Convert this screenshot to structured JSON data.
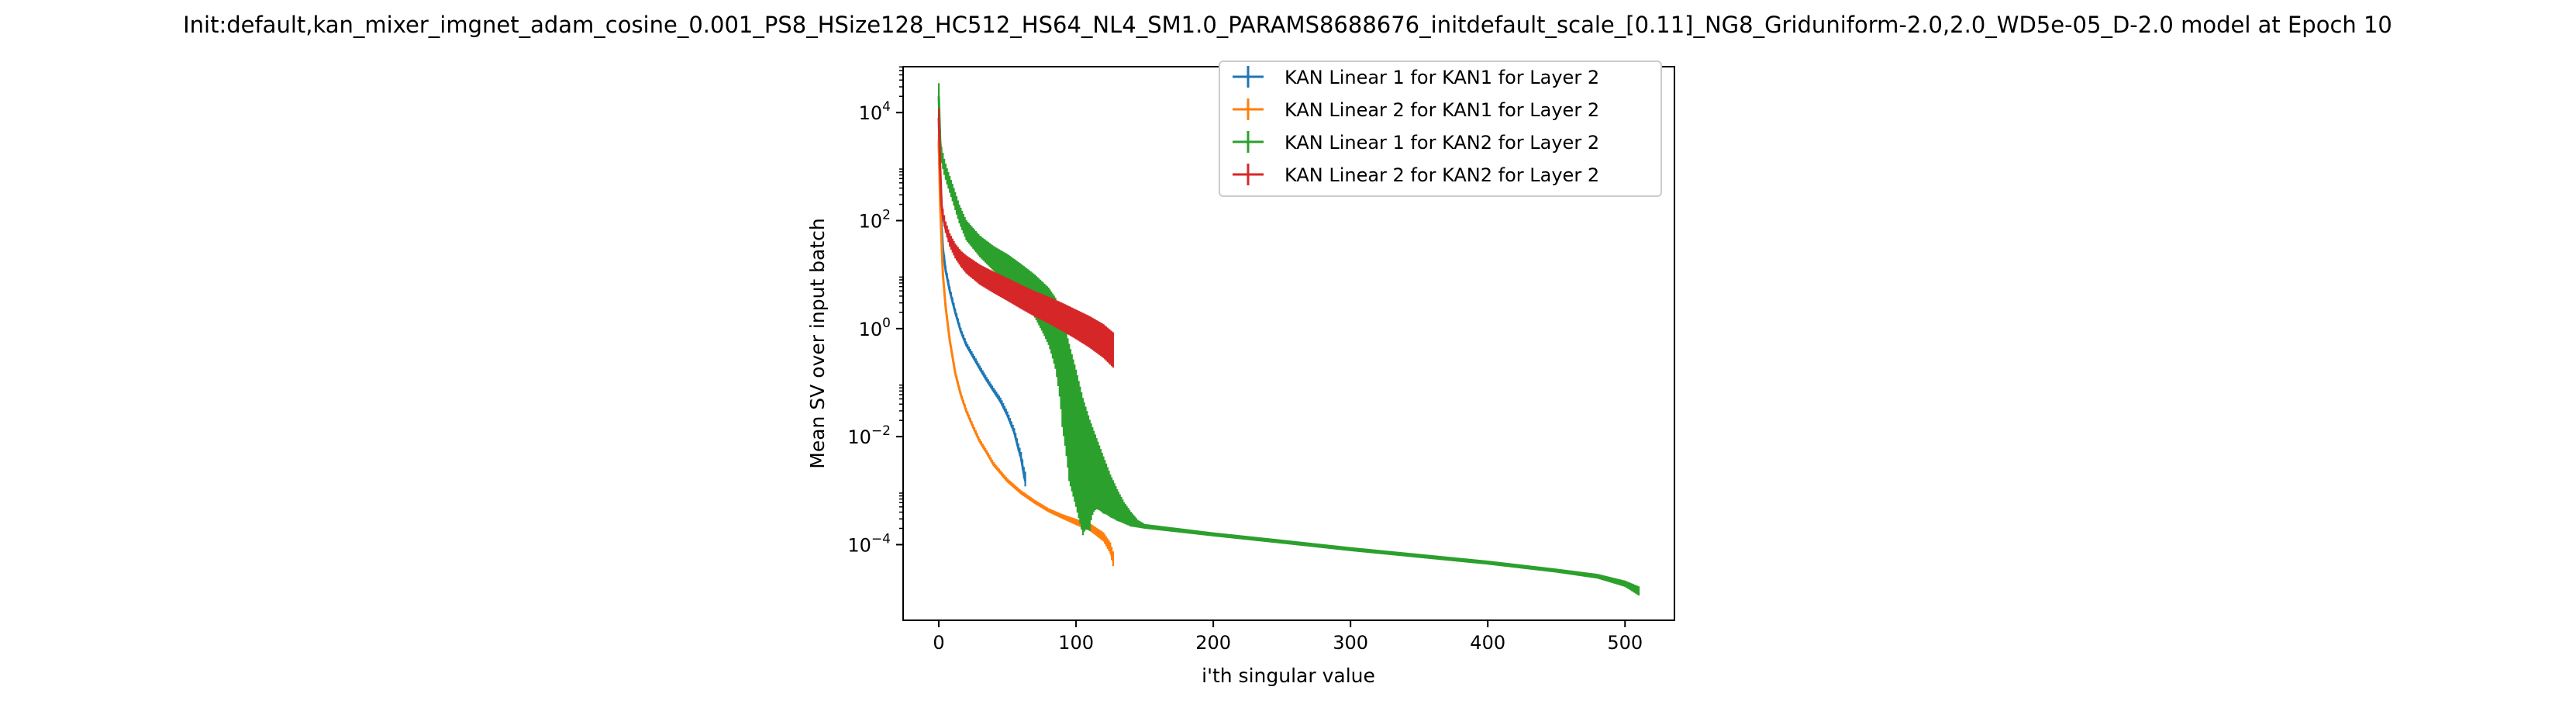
{
  "chart_data": {
    "type": "line",
    "title": "Init:default,kan_mixer_imgnet_adam_cosine_0.001_PS8_HSize128_HC512_HS64_NL4_SM1.0_PARAMS8688676_initdefault_scale_[0.11]_NG8_Griduniform-2.0,2.0_WD5e-05_D-2.0 model at Epoch 10",
    "xlabel": "i'th singular value",
    "ylabel": "Mean SV over input batch",
    "xlim": [
      -26,
      536
    ],
    "ylim_log10": [
      -5.4,
      4.85
    ],
    "y_scale": "log",
    "x_ticks": [
      "0",
      "100",
      "200",
      "300",
      "400",
      "500"
    ],
    "y_ticks": [
      {
        "base": "10",
        "exp": "4"
      },
      {
        "base": "10",
        "exp": "2"
      },
      {
        "base": "10",
        "exp": "0"
      },
      {
        "base": "10",
        "exp": "−2"
      },
      {
        "base": "10",
        "exp": "−4"
      }
    ],
    "legend_position": "top-right",
    "grid": false,
    "series": [
      {
        "name": "KAN Linear 1 for KAN1 for Layer 2",
        "color": "#1f77b4",
        "x": [
          0,
          1,
          2,
          3,
          5,
          8,
          12,
          16,
          20,
          25,
          30,
          35,
          40,
          45,
          50,
          55,
          58,
          60,
          62,
          63
        ],
        "y": [
          3000,
          300,
          80,
          30,
          12,
          5,
          2,
          0.9,
          0.5,
          0.3,
          0.18,
          0.11,
          0.07,
          0.045,
          0.025,
          0.012,
          0.006,
          0.004,
          0.002,
          0.0015
        ],
        "err_rel": [
          0.15,
          0.12,
          0.1,
          0.1,
          0.08,
          0.08,
          0.07,
          0.06,
          0.06,
          0.06,
          0.06,
          0.06,
          0.06,
          0.07,
          0.07,
          0.08,
          0.1,
          0.12,
          0.15,
          0.2
        ]
      },
      {
        "name": "KAN Linear 2 for KAN1 for Layer 2",
        "color": "#ff7f0e",
        "x": [
          0,
          1,
          2,
          3,
          5,
          8,
          12,
          16,
          20,
          25,
          30,
          35,
          40,
          50,
          60,
          70,
          80,
          90,
          100,
          110,
          120,
          125,
          127
        ],
        "y": [
          3000,
          200,
          40,
          10,
          2.5,
          0.6,
          0.15,
          0.06,
          0.03,
          0.015,
          0.008,
          0.005,
          0.003,
          0.0015,
          0.0009,
          0.0006,
          0.00042,
          0.00032,
          0.00025,
          0.0002,
          0.00013,
          8e-05,
          5e-05
        ],
        "err_rel": [
          0.12,
          0.1,
          0.1,
          0.08,
          0.06,
          0.06,
          0.05,
          0.05,
          0.05,
          0.05,
          0.05,
          0.05,
          0.05,
          0.05,
          0.05,
          0.05,
          0.05,
          0.06,
          0.08,
          0.1,
          0.12,
          0.15,
          0.2
        ]
      },
      {
        "name": "KAN Linear 1 for KAN2 for Layer 2",
        "color": "#2ca02c",
        "x": [
          0,
          1,
          2,
          4,
          6,
          10,
          15,
          20,
          30,
          40,
          50,
          60,
          70,
          80,
          85,
          90,
          95,
          100,
          105,
          110,
          115,
          120,
          125,
          130,
          135,
          140,
          145,
          150,
          200,
          250,
          300,
          350,
          400,
          450,
          480,
          500,
          510
        ],
        "y": [
          20000,
          3000,
          1500,
          900,
          600,
          300,
          120,
          60,
          30,
          18,
          12,
          7,
          4,
          2,
          1.2,
          0.5,
          0.15,
          0.05,
          0.015,
          0.006,
          0.003,
          0.0015,
          0.0008,
          0.0005,
          0.00035,
          0.00027,
          0.00023,
          0.00021,
          0.00015,
          0.00011,
          8e-05,
          6e-05,
          4.5e-05,
          3.2e-05,
          2.5e-05,
          1.8e-05,
          1.3e-05
        ],
        "err_rel": [
          0.3,
          0.25,
          0.22,
          0.22,
          0.22,
          0.24,
          0.26,
          0.28,
          0.3,
          0.35,
          0.4,
          0.5,
          0.6,
          0.75,
          0.85,
          0.97,
          0.99,
          0.99,
          0.99,
          0.97,
          0.85,
          0.75,
          0.6,
          0.45,
          0.3,
          0.2,
          0.1,
          0.06,
          0.05,
          0.05,
          0.05,
          0.05,
          0.05,
          0.05,
          0.06,
          0.08,
          0.12
        ]
      },
      {
        "name": "KAN Linear 2 for KAN2 for Layer 2",
        "color": "#d62728",
        "x": [
          0,
          1,
          2,
          3,
          5,
          8,
          12,
          16,
          20,
          30,
          40,
          50,
          60,
          70,
          80,
          90,
          100,
          110,
          120,
          127
        ],
        "y": [
          8000,
          1000,
          200,
          120,
          70,
          40,
          25,
          18,
          14,
          9,
          6.5,
          4.8,
          3.5,
          2.6,
          2,
          1.5,
          1.1,
          0.8,
          0.55,
          0.38
        ],
        "err_rel": [
          0.2,
          0.15,
          0.15,
          0.15,
          0.15,
          0.18,
          0.2,
          0.22,
          0.25,
          0.28,
          0.3,
          0.32,
          0.34,
          0.36,
          0.38,
          0.4,
          0.42,
          0.45,
          0.48,
          0.5
        ]
      }
    ]
  }
}
